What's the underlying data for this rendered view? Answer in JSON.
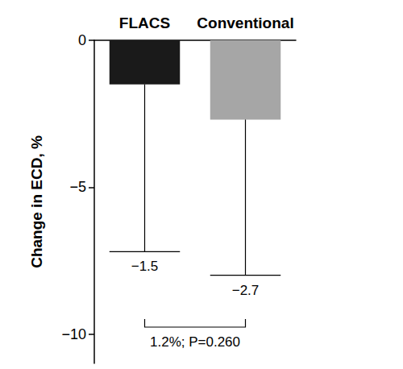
{
  "chart_data": {
    "type": "bar",
    "categories": [
      "FLACS",
      "Conventional"
    ],
    "values": [
      -1.5,
      -2.7
    ],
    "value_labels": [
      "−1.5",
      "−2.7"
    ],
    "errors": [
      5.7,
      5.3
    ],
    "colors": [
      "#1a1a1a",
      "#a6a6a6"
    ],
    "ylabel": "Change in ECD, %",
    "ylim": [
      -11,
      0
    ],
    "yticks": [
      {
        "value": -10,
        "label": "−10"
      },
      {
        "value": -5,
        "label": "−5"
      },
      0
    ],
    "data_labels": true,
    "grid": false,
    "annotations": [
      {
        "text": "1.2%; P=0.260",
        "between": [
          "FLACS",
          "Conventional"
        ]
      }
    ]
  }
}
